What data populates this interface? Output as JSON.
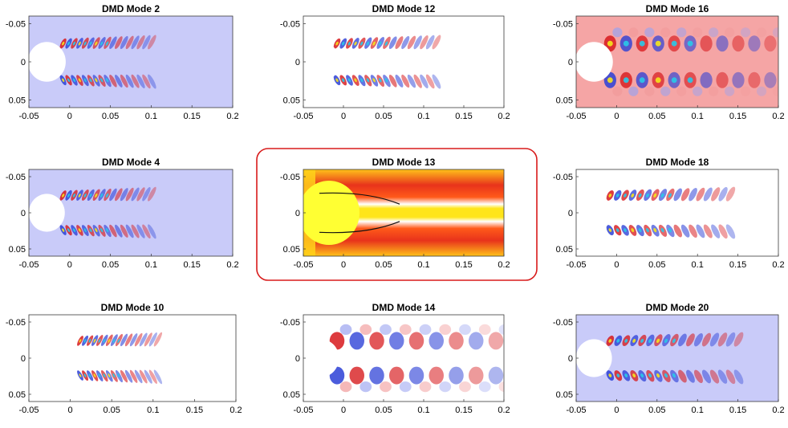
{
  "figure": {
    "highlight_color": "#d81b1b",
    "highlighted_panel": "DMD Mode 13"
  },
  "chart_data": [
    {
      "type": "heatmap",
      "title": "DMD Mode 2",
      "xlim": [
        -0.05,
        0.2
      ],
      "ylim": [
        -0.06,
        0.06
      ],
      "y_reversed": true,
      "x_ticks": [
        "-0.05",
        "0",
        "0.05",
        "0.1",
        "0.15",
        "0.2"
      ],
      "y_ticks": [
        "-0.05",
        "0",
        "0.05"
      ],
      "background_color": "#c9cbf9",
      "pattern": "oscillating wake lobes in two shear layers",
      "wake_extent_x": [
        -0.02,
        0.1
      ]
    },
    {
      "type": "heatmap",
      "title": "DMD Mode 12",
      "xlim": [
        -0.05,
        0.2
      ],
      "ylim": [
        -0.06,
        0.06
      ],
      "y_reversed": true,
      "x_ticks": [
        "-0.05",
        "0",
        "0.05",
        "0.1",
        "0.15",
        "0.2"
      ],
      "y_ticks": [
        "-0.05",
        "0",
        "0.05"
      ],
      "background_color": "#ffffff",
      "pattern": "oscillating wake lobes in two shear layers",
      "wake_extent_x": [
        -0.02,
        0.115
      ]
    },
    {
      "type": "heatmap",
      "title": "DMD Mode 16",
      "xlim": [
        -0.05,
        0.2
      ],
      "ylim": [
        -0.06,
        0.06
      ],
      "y_reversed": true,
      "x_ticks": [
        "-0.05",
        "0",
        "0.05",
        "0.1",
        "0.15",
        "0.2"
      ],
      "y_ticks": [
        "-0.05",
        "0",
        "0.05"
      ],
      "background_color": "#f5a5a5",
      "pattern": "broad oscillating wake lobes",
      "wake_extent_x": [
        -0.02,
        0.19
      ]
    },
    {
      "type": "heatmap",
      "title": "DMD Mode 4",
      "xlim": [
        -0.05,
        0.2
      ],
      "ylim": [
        -0.06,
        0.06
      ],
      "y_reversed": true,
      "x_ticks": [
        "-0.05",
        "0",
        "0.05",
        "0.1",
        "0.15",
        "0.2"
      ],
      "y_ticks": [
        "-0.05",
        "0",
        "0.05"
      ],
      "background_color": "#c9cbf9",
      "pattern": "oscillating wake lobes in two shear layers",
      "wake_extent_x": [
        -0.02,
        0.1
      ]
    },
    {
      "type": "heatmap",
      "title": "DMD Mode 13",
      "xlim": [
        -0.05,
        0.2
      ],
      "ylim": [
        -0.06,
        0.06
      ],
      "y_reversed": true,
      "x_ticks": [
        "-0.05",
        "0",
        "0.05",
        "0.1",
        "0.15",
        "0.2"
      ],
      "y_ticks": [
        "-0.05",
        "0",
        "0.05"
      ],
      "background_color": "#ffd21a",
      "pattern": "mean-flow mode with red shear layers and yellow core",
      "wake_extent_x": [
        -0.05,
        0.2
      ]
    },
    {
      "type": "heatmap",
      "title": "DMD Mode 18",
      "xlim": [
        -0.05,
        0.2
      ],
      "ylim": [
        -0.06,
        0.06
      ],
      "y_reversed": true,
      "x_ticks": [
        "-0.05",
        "0",
        "0.05",
        "0.1",
        "0.15",
        "0.2"
      ],
      "y_ticks": [
        "-0.05",
        "0",
        "0.05"
      ],
      "background_color": "#ffffff",
      "pattern": "oscillating wake lobes in two shear layers",
      "wake_extent_x": [
        -0.02,
        0.14
      ]
    },
    {
      "type": "heatmap",
      "title": "DMD Mode 10",
      "xlim": [
        -0.05,
        0.2
      ],
      "ylim": [
        -0.06,
        0.06
      ],
      "y_reversed": true,
      "x_ticks": [
        "-0.05",
        "0",
        "0.05",
        "0.1",
        "0.15",
        "0.2"
      ],
      "y_ticks": [
        "-0.05",
        "0",
        "0.05"
      ],
      "background_color": "#ffffff",
      "pattern": "oscillating wake lobes in two shear layers",
      "wake_extent_x": [
        0,
        0.105
      ]
    },
    {
      "type": "heatmap",
      "title": "DMD Mode 14",
      "xlim": [
        -0.05,
        0.2
      ],
      "ylim": [
        -0.06,
        0.06
      ],
      "y_reversed": true,
      "x_ticks": [
        "-0.05",
        "0",
        "0.05",
        "0.1",
        "0.15",
        "0.2"
      ],
      "y_ticks": [
        "-0.05",
        "0",
        "0.05"
      ],
      "background_color": "#ffffff",
      "pattern": "large alternating wake lobes",
      "wake_extent_x": [
        -0.02,
        0.19
      ]
    },
    {
      "type": "heatmap",
      "title": "DMD Mode 20",
      "xlim": [
        -0.05,
        0.2
      ],
      "ylim": [
        -0.06,
        0.06
      ],
      "y_reversed": true,
      "x_ticks": [
        "-0.05",
        "0",
        "0.05",
        "0.1",
        "0.15",
        "0.2"
      ],
      "y_ticks": [
        "-0.05",
        "0",
        "0.05"
      ],
      "background_color": "#c9cbf9",
      "pattern": "oscillating wake lobes in two shear layers",
      "wake_extent_x": [
        -0.02,
        0.15
      ]
    }
  ]
}
